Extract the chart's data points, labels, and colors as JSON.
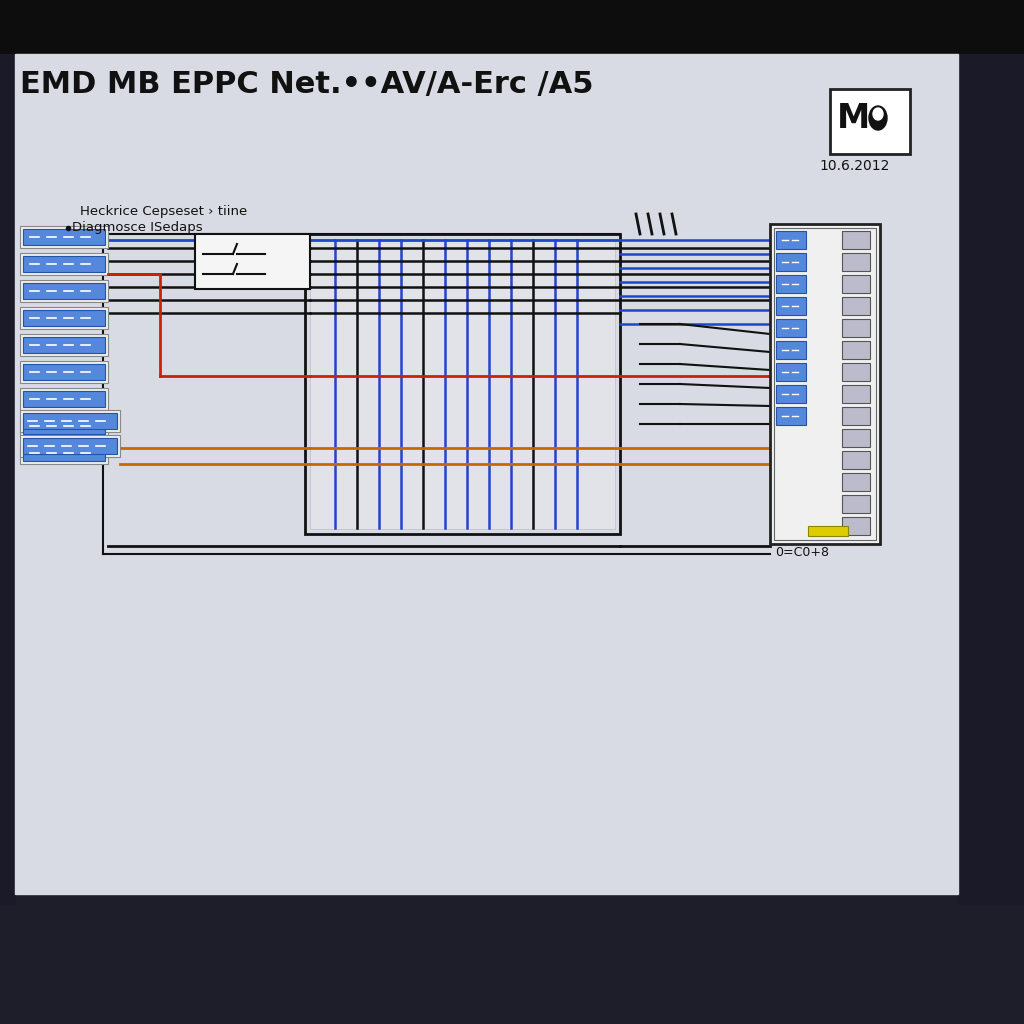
{
  "title": "EMD MB EPPC Net.••AV/A-Erc /A5",
  "subtitle1": "Heckrice Cepseset › tiine",
  "subtitle2": "Diagmosce ISedaps",
  "date": "10.6.2012",
  "bg_top": "#111111",
  "bg_bottom": "#1e1e2a",
  "bg_right": "#1e1e2a",
  "paper_color": "#d8dbe4",
  "connector_blue": "#4477cc",
  "connector_fill": "#5588dd",
  "wire_black": "#111111",
  "wire_red": "#cc2200",
  "wire_blue": "#2244cc",
  "wire_orange": "#cc6600",
  "wire_yellow": "#ddcc00",
  "panel_bg": "#f0f0f0",
  "panel_edge": "#222222",
  "mid_box_color": "#e8eaee"
}
